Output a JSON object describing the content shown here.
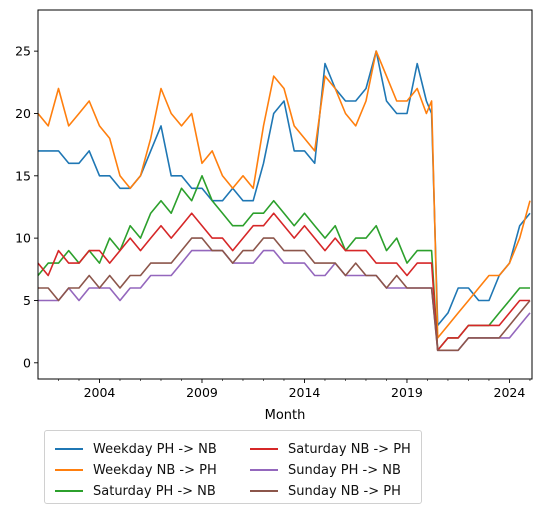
{
  "chart_data": {
    "type": "line",
    "title": "",
    "xlabel": "Month",
    "ylabel": "",
    "xlim": [
      2001,
      2025.1
    ],
    "ylim": [
      -1.3,
      28.3
    ],
    "xticks": [
      2004,
      2009,
      2014,
      2019,
      2024
    ],
    "xtick_labels": [
      "2004",
      "2009",
      "2014",
      "2019",
      "2024"
    ],
    "yticks": [
      0,
      5,
      10,
      15,
      20,
      25
    ],
    "ytick_labels": [
      "0",
      "5",
      "10",
      "15",
      "20",
      "25"
    ],
    "grid": false,
    "legend_position": "below",
    "series": [
      {
        "name": "Weekday PH -> NB",
        "color": "#1f77b4",
        "x": [
          2001.0,
          2001.5,
          2002.0,
          2002.5,
          2003.0,
          2003.5,
          2004.0,
          2004.5,
          2005.0,
          2005.5,
          2006.0,
          2006.5,
          2007.0,
          2007.5,
          2008.0,
          2008.5,
          2009.0,
          2009.5,
          2010.0,
          2010.5,
          2011.0,
          2011.5,
          2012.0,
          2012.5,
          2013.0,
          2013.5,
          2014.0,
          2014.5,
          2015.0,
          2015.5,
          2016.0,
          2016.5,
          2017.0,
          2017.5,
          2018.0,
          2018.5,
          2019.0,
          2019.5,
          2019.95,
          2020.2,
          2020.5,
          2021.0,
          2021.5,
          2022.0,
          2022.5,
          2023.0,
          2023.5,
          2024.0,
          2024.5,
          2025.0
        ],
        "y": [
          17,
          17,
          17,
          16,
          16,
          17,
          15,
          15,
          14,
          14,
          15,
          17,
          19,
          15,
          15,
          14,
          14,
          13,
          13,
          14,
          13,
          13,
          16,
          20,
          21,
          17,
          17,
          16,
          24,
          22,
          21,
          21,
          22,
          25,
          21,
          20,
          20,
          24,
          21,
          20,
          3,
          4,
          6,
          6,
          5,
          5,
          7,
          8,
          11,
          12
        ]
      },
      {
        "name": "Weekday NB -> PH",
        "color": "#ff7f0e",
        "x": [
          2001.0,
          2001.5,
          2002.0,
          2002.5,
          2003.0,
          2003.5,
          2004.0,
          2004.5,
          2005.0,
          2005.5,
          2006.0,
          2006.5,
          2007.0,
          2007.5,
          2008.0,
          2008.5,
          2009.0,
          2009.5,
          2010.0,
          2010.5,
          2011.0,
          2011.5,
          2012.0,
          2012.5,
          2013.0,
          2013.5,
          2014.0,
          2014.5,
          2015.0,
          2015.5,
          2016.0,
          2016.5,
          2017.0,
          2017.5,
          2018.0,
          2018.5,
          2019.0,
          2019.5,
          2019.95,
          2020.2,
          2020.5,
          2021.0,
          2021.5,
          2022.0,
          2022.5,
          2023.0,
          2023.5,
          2024.0,
          2024.5,
          2025.0
        ],
        "y": [
          20,
          19,
          22,
          19,
          20,
          21,
          19,
          18,
          15,
          14,
          15,
          18,
          22,
          20,
          19,
          20,
          16,
          17,
          15,
          14,
          15,
          14,
          19,
          23,
          22,
          19,
          18,
          17,
          23,
          22,
          20,
          19,
          21,
          25,
          23,
          21,
          21,
          22,
          20,
          21,
          2,
          3,
          4,
          5,
          6,
          7,
          7,
          8,
          10,
          13
        ]
      },
      {
        "name": "Saturday PH -> NB",
        "color": "#2ca02c",
        "x": [
          2001.0,
          2001.5,
          2002.0,
          2002.5,
          2003.0,
          2003.5,
          2004.0,
          2004.5,
          2005.0,
          2005.5,
          2006.0,
          2006.5,
          2007.0,
          2007.5,
          2008.0,
          2008.5,
          2009.0,
          2009.5,
          2010.0,
          2010.5,
          2011.0,
          2011.5,
          2012.0,
          2012.5,
          2013.0,
          2013.5,
          2014.0,
          2014.5,
          2015.0,
          2015.5,
          2016.0,
          2016.5,
          2017.0,
          2017.5,
          2018.0,
          2018.5,
          2019.0,
          2019.5,
          2019.95,
          2020.2,
          2020.5,
          2021.0,
          2021.5,
          2022.0,
          2022.5,
          2023.0,
          2023.5,
          2024.0,
          2024.5,
          2025.0
        ],
        "y": [
          7,
          8,
          8,
          9,
          8,
          9,
          8,
          10,
          9,
          11,
          10,
          12,
          13,
          12,
          14,
          13,
          15,
          13,
          12,
          11,
          11,
          12,
          12,
          13,
          12,
          11,
          12,
          11,
          10,
          11,
          9,
          10,
          10,
          11,
          9,
          10,
          8,
          9,
          9,
          9,
          1,
          2,
          2,
          3,
          3,
          3,
          4,
          5,
          6,
          6
        ]
      },
      {
        "name": "Saturday NB -> PH",
        "color": "#d62728",
        "x": [
          2001.0,
          2001.5,
          2002.0,
          2002.5,
          2003.0,
          2003.5,
          2004.0,
          2004.5,
          2005.0,
          2005.5,
          2006.0,
          2006.5,
          2007.0,
          2007.5,
          2008.0,
          2008.5,
          2009.0,
          2009.5,
          2010.0,
          2010.5,
          2011.0,
          2011.5,
          2012.0,
          2012.5,
          2013.0,
          2013.5,
          2014.0,
          2014.5,
          2015.0,
          2015.5,
          2016.0,
          2016.5,
          2017.0,
          2017.5,
          2018.0,
          2018.5,
          2019.0,
          2019.5,
          2019.95,
          2020.2,
          2020.5,
          2021.0,
          2021.5,
          2022.0,
          2022.5,
          2023.0,
          2023.5,
          2024.0,
          2024.5,
          2025.0
        ],
        "y": [
          8,
          7,
          9,
          8,
          8,
          9,
          9,
          8,
          9,
          10,
          9,
          10,
          11,
          10,
          11,
          12,
          11,
          10,
          10,
          9,
          10,
          11,
          11,
          12,
          11,
          10,
          11,
          10,
          9,
          10,
          9,
          9,
          9,
          8,
          8,
          8,
          7,
          8,
          8,
          8,
          1,
          2,
          2,
          3,
          3,
          3,
          3,
          4,
          5,
          5
        ]
      },
      {
        "name": "Sunday PH -> NB",
        "color": "#9467bd",
        "x": [
          2001.0,
          2001.5,
          2002.0,
          2002.5,
          2003.0,
          2003.5,
          2004.0,
          2004.5,
          2005.0,
          2005.5,
          2006.0,
          2006.5,
          2007.0,
          2007.5,
          2008.0,
          2008.5,
          2009.0,
          2009.5,
          2010.0,
          2010.5,
          2011.0,
          2011.5,
          2012.0,
          2012.5,
          2013.0,
          2013.5,
          2014.0,
          2014.5,
          2015.0,
          2015.5,
          2016.0,
          2016.5,
          2017.0,
          2017.5,
          2018.0,
          2018.5,
          2019.0,
          2019.5,
          2019.95,
          2020.2,
          2020.5,
          2021.0,
          2021.5,
          2022.0,
          2022.5,
          2023.0,
          2023.5,
          2024.0,
          2024.5,
          2025.0
        ],
        "y": [
          5,
          5,
          5,
          6,
          5,
          6,
          6,
          6,
          5,
          6,
          6,
          7,
          7,
          7,
          8,
          9,
          9,
          9,
          9,
          8,
          8,
          8,
          9,
          9,
          8,
          8,
          8,
          7,
          7,
          8,
          7,
          7,
          7,
          7,
          6,
          6,
          6,
          6,
          6,
          6,
          1,
          1,
          1,
          2,
          2,
          2,
          2,
          2,
          3,
          4
        ]
      },
      {
        "name": "Sunday NB -> PH",
        "color": "#8c564b",
        "x": [
          2001.0,
          2001.5,
          2002.0,
          2002.5,
          2003.0,
          2003.5,
          2004.0,
          2004.5,
          2005.0,
          2005.5,
          2006.0,
          2006.5,
          2007.0,
          2007.5,
          2008.0,
          2008.5,
          2009.0,
          2009.5,
          2010.0,
          2010.5,
          2011.0,
          2011.5,
          2012.0,
          2012.5,
          2013.0,
          2013.5,
          2014.0,
          2014.5,
          2015.0,
          2015.5,
          2016.0,
          2016.5,
          2017.0,
          2017.5,
          2018.0,
          2018.5,
          2019.0,
          2019.5,
          2019.95,
          2020.2,
          2020.5,
          2021.0,
          2021.5,
          2022.0,
          2022.5,
          2023.0,
          2023.5,
          2024.0,
          2024.5,
          2025.0
        ],
        "y": [
          6,
          6,
          5,
          6,
          6,
          7,
          6,
          7,
          6,
          7,
          7,
          8,
          8,
          8,
          9,
          10,
          10,
          9,
          9,
          8,
          9,
          9,
          10,
          10,
          9,
          9,
          9,
          8,
          8,
          8,
          7,
          8,
          7,
          7,
          6,
          7,
          6,
          6,
          6,
          6,
          1,
          1,
          1,
          2,
          2,
          2,
          2,
          3,
          4,
          5
        ]
      }
    ]
  }
}
